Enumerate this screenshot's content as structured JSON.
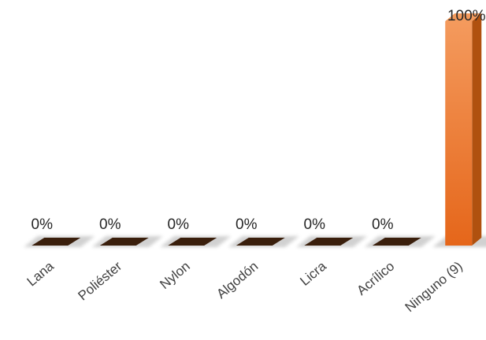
{
  "chart_data": {
    "type": "bar",
    "style": "3d-column",
    "categories": [
      "Lana",
      "Poliéster",
      "Nylon",
      "Algodón",
      "Licra",
      "Acrílico",
      "Ninguno (9)"
    ],
    "values": [
      0,
      0,
      0,
      0,
      0,
      0,
      100
    ],
    "data_labels": [
      "0%",
      "0%",
      "0%",
      "0%",
      "0%",
      "0%",
      "100%"
    ],
    "ylim": [
      0,
      100
    ],
    "unit": "%",
    "grid": false,
    "legend": "none",
    "colors": {
      "bar_front": "#e8731e",
      "bar_top": "#f29a5c",
      "bar_side": "#b0510f",
      "floor_cap": "#3a1f0c",
      "floor_shadow": "#9a9a9a"
    }
  }
}
